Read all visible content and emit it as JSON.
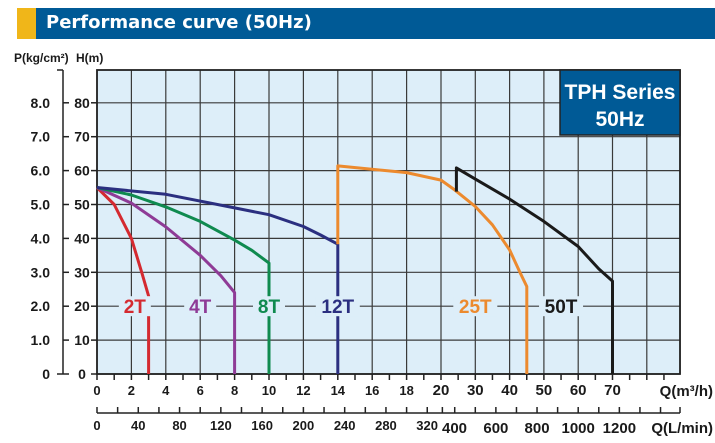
{
  "header": {
    "title": "Performance curve (50Hz)"
  },
  "chart_data": {
    "type": "line",
    "title": "Performance curve (50Hz)",
    "badge": {
      "line1": "TPH Series",
      "line2": "50Hz"
    },
    "ylabel_left": "P(kg/cm²)",
    "ylabel": "H(m)",
    "xlabel": "Q(m³/h)",
    "xlabel2": "Q(L/min)",
    "ylim": [
      0,
      89.7
    ],
    "xlim": [
      0,
      89.7
    ],
    "x_scale": "piecewise: linear 0–20 (2 per division), 10 per division 20–90",
    "grid": true,
    "y_ticks_h": [
      "0",
      "10",
      "20",
      "30",
      "40",
      "50",
      "60",
      "70",
      "80"
    ],
    "y_ticks_p": [
      "0",
      "1.0",
      "2.0",
      "3.0",
      "4.0",
      "5.0",
      "6.0",
      "7.0",
      "8.0"
    ],
    "x_ticks": [
      "0",
      "2",
      "4",
      "6",
      "8",
      "10",
      "12",
      "14",
      "16",
      "18",
      "20",
      "30",
      "40",
      "50",
      "60",
      "70"
    ],
    "x2_ticks": [
      "0",
      "40",
      "80",
      "120",
      "160",
      "200",
      "240",
      "280",
      "320",
      "400",
      "600",
      "800",
      "1000",
      "1200"
    ],
    "series": [
      {
        "name": "2T",
        "color": "#d42a30",
        "label_q": 2.2,
        "points": [
          [
            0,
            55
          ],
          [
            1,
            50
          ],
          [
            2,
            40
          ],
          [
            2.6,
            30
          ],
          [
            3,
            23
          ],
          [
            3,
            0
          ]
        ]
      },
      {
        "name": "4T",
        "color": "#8e3b96",
        "label_q": 6,
        "points": [
          [
            0,
            55
          ],
          [
            2,
            50.4
          ],
          [
            4,
            43.4
          ],
          [
            6,
            35
          ],
          [
            7.2,
            29
          ],
          [
            8,
            24
          ],
          [
            8,
            0
          ]
        ]
      },
      {
        "name": "8T",
        "color": "#0f8a4f",
        "label_q": 10,
        "points": [
          [
            0,
            55
          ],
          [
            2,
            52.8
          ],
          [
            4,
            49.3
          ],
          [
            6,
            45
          ],
          [
            8,
            39.5
          ],
          [
            9,
            36.5
          ],
          [
            10,
            32.7
          ],
          [
            10,
            0
          ]
        ]
      },
      {
        "name": "12T",
        "color": "#2b2f80",
        "label_q": 14,
        "points": [
          [
            0,
            55
          ],
          [
            4,
            53
          ],
          [
            8,
            49
          ],
          [
            10,
            47
          ],
          [
            12,
            43.5
          ],
          [
            13,
            41
          ],
          [
            14,
            38.3
          ],
          [
            14,
            0
          ]
        ]
      },
      {
        "name": "25T",
        "color": "#ec8a2e",
        "label_q": 30,
        "points": [
          [
            14,
            38.3
          ],
          [
            14,
            61.4
          ],
          [
            18,
            59.4
          ],
          [
            20,
            57.2
          ],
          [
            24,
            54.3
          ],
          [
            30,
            49.4
          ],
          [
            35,
            44
          ],
          [
            40,
            36.6
          ],
          [
            43,
            30
          ],
          [
            45,
            25.8
          ],
          [
            45,
            0
          ]
        ]
      },
      {
        "name": "50T",
        "color": "#1a1a1a",
        "label_q": 55,
        "points": [
          [
            24.5,
            53.8
          ],
          [
            24.5,
            60.8
          ],
          [
            30,
            57.5
          ],
          [
            40,
            51.6
          ],
          [
            50,
            45
          ],
          [
            60,
            37.6
          ],
          [
            66,
            31
          ],
          [
            70,
            27.4
          ],
          [
            70,
            0
          ]
        ]
      }
    ],
    "label_h": 20,
    "colors": {
      "plot_bg": "#ddeef9",
      "grid": "#3a3a3a",
      "header_bg": "#005a96",
      "header_accent": "#f0b619",
      "badge_bg": "#005a96"
    }
  }
}
